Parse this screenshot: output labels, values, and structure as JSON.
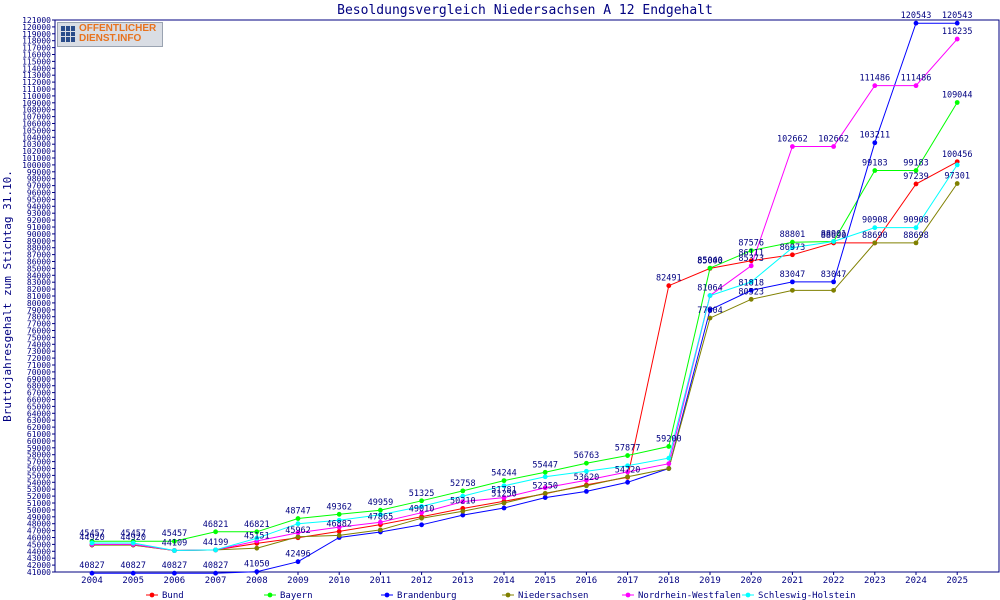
{
  "logo": {
    "line1": "OFFENTLICHER",
    "line2": "DIENST.INFO"
  },
  "chart_data": {
    "type": "line",
    "title": "Besoldungsvergleich Niedersachsen A 12 Endgehalt",
    "xlabel": "",
    "ylabel": "Bruttojahresgehalt zum Stichtag 31.10.",
    "ylim": [
      41000,
      121000
    ],
    "ytick_step": 1000,
    "grid": false,
    "legend_position": "bottom",
    "categories": [
      "2004",
      "2005",
      "2006",
      "2007",
      "2008",
      "2009",
      "2010",
      "2011",
      "2012",
      "2013",
      "2014",
      "2015",
      "2016",
      "2017",
      "2018",
      "2019",
      "2020",
      "2021",
      "2022",
      "2023",
      "2024",
      "2025"
    ],
    "series": [
      {
        "name": "Bund",
        "color": "#ff0000",
        "values": [
          44920,
          44920,
          44109,
          44199,
          45151,
          45962,
          46882,
          47865,
          49010,
          50210,
          51250,
          52350,
          53620,
          54720,
          82491,
          85000,
          86111,
          86973,
          88690,
          88690,
          97239,
          100456
        ],
        "labels": [
          "44920",
          "44920",
          "44109",
          "44199",
          "45151",
          "45962",
          "46882",
          "47865",
          "49010",
          "50210",
          "51250",
          "52350",
          "53620",
          "54720",
          "82491",
          "85000",
          "86111",
          "86973",
          "88690",
          "88690",
          "97239",
          "100456"
        ]
      },
      {
        "name": "Bayern",
        "color": "#00ff00",
        "values": [
          45457,
          45457,
          45457,
          46821,
          46821,
          48747,
          49362,
          49959,
          51325,
          52758,
          54244,
          55447,
          56763,
          57877,
          59200,
          85040,
          87576,
          88801,
          88901,
          99183,
          99183,
          109044
        ],
        "labels": [
          "45457",
          "45457",
          "45457",
          "46821",
          "46821",
          "48747",
          "49362",
          "49959",
          "51325",
          "52758",
          "54244",
          "55447",
          "56763",
          "57877",
          "59200",
          "85040",
          "87576",
          "88801",
          "88901",
          "99183",
          "99183",
          "109044"
        ]
      },
      {
        "name": "Brandenburg",
        "color": "#0000ff",
        "values": [
          40827,
          40827,
          40827,
          40827,
          41050,
          42496,
          46000,
          46800,
          47840,
          49250,
          50270,
          51781,
          52680,
          54000,
          56000,
          79000,
          81818,
          83047,
          83047,
          103211,
          120543,
          120543
        ],
        "labels": [
          "40827",
          "40827",
          "40827",
          "40827",
          "41050",
          "42496",
          "",
          "",
          "",
          "",
          "",
          "",
          "",
          "",
          "",
          "",
          "81818",
          "83047",
          "83047",
          "103211",
          "120543",
          "120543"
        ]
      },
      {
        "name": "Niedersachsen",
        "color": "#808000",
        "values": [
          44900,
          44900,
          44109,
          44199,
          44452,
          46100,
          46300,
          47100,
          48800,
          49800,
          51000,
          52400,
          53500,
          54800,
          56000,
          77804,
          80523,
          81818,
          81818,
          88698,
          88698,
          97301
        ],
        "labels": [
          "",
          "",
          "",
          "",
          "",
          "",
          "",
          "",
          "",
          "",
          "",
          "",
          "",
          "",
          "",
          "77804",
          "80523",
          "",
          "",
          "",
          "88698",
          "97301"
        ]
      },
      {
        "name": "Nordrhein-Westfalen",
        "color": "#ff00ff",
        "values": [
          45000,
          45000,
          44109,
          44199,
          45500,
          46700,
          47500,
          48200,
          49600,
          51200,
          51781,
          53200,
          54300,
          55500,
          56700,
          81064,
          85373,
          102662,
          102662,
          111486,
          111486,
          118235
        ],
        "labels": [
          "",
          "",
          "",
          "",
          "",
          "",
          "",
          "",
          "",
          "",
          "51781",
          "",
          "",
          "",
          "",
          "81064",
          "85373",
          "102662",
          "102662",
          "111486",
          "111486",
          "118235"
        ]
      },
      {
        "name": "Schleswig-Holstein",
        "color": "#00ffff",
        "values": [
          45200,
          45200,
          44109,
          44199,
          45900,
          48000,
          48500,
          49300,
          50500,
          52000,
          53500,
          54800,
          55600,
          56400,
          57500,
          81064,
          83047,
          88000,
          88901,
          90908,
          90908,
          100000
        ],
        "labels": [
          "",
          "",
          "",
          "",
          "",
          "",
          "",
          "",
          "",
          "",
          "",
          "",
          "",
          "",
          "",
          "",
          "",
          "",
          "",
          "90908",
          "90908",
          ""
        ]
      }
    ]
  }
}
